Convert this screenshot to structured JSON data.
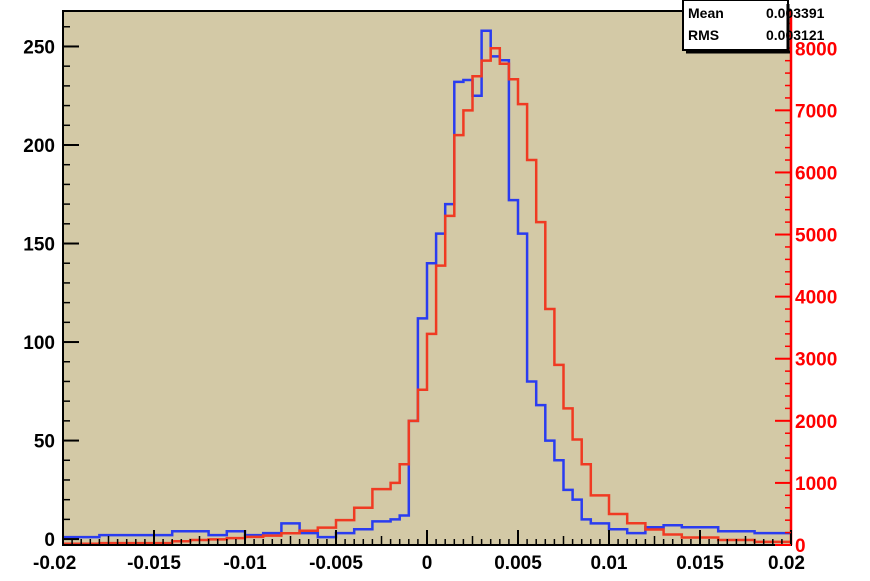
{
  "chart_data": {
    "type": "histogram",
    "xlim": [
      -0.02,
      0.02
    ],
    "x_ticks": [
      "-0.02",
      "-0.015",
      "-0.01",
      "-0.005",
      "0",
      "0.005",
      "0.01",
      "0.015",
      "0.02"
    ],
    "x_tick_values": [
      -0.02,
      -0.015,
      -0.01,
      -0.005,
      0,
      0.005,
      0.01,
      0.015,
      0.02
    ],
    "left_axis": {
      "ylim": [
        -3,
        268
      ],
      "ticks": [
        "0",
        "50",
        "100",
        "150",
        "200",
        "250"
      ],
      "tick_values": [
        0,
        50,
        100,
        150,
        200,
        250
      ],
      "color": "#000000"
    },
    "right_axis": {
      "ylim": [
        0,
        8600
      ],
      "ticks": [
        "0",
        "1000",
        "2000",
        "3000",
        "4000",
        "5000",
        "6000",
        "7000",
        "8000"
      ],
      "tick_values": [
        0,
        1000,
        2000,
        3000,
        4000,
        5000,
        6000,
        7000,
        8000
      ],
      "color": "#ff0000"
    },
    "bin_edges": [
      -0.02,
      -0.018,
      -0.014,
      -0.013,
      -0.012,
      -0.011,
      -0.01,
      -0.009,
      -0.008,
      -0.007,
      -0.006,
      -0.005,
      -0.004,
      -0.003,
      -0.002,
      -0.0015,
      -0.001,
      -0.0005,
      0,
      0.0005,
      0.001,
      0.0015,
      0.002,
      0.0025,
      0.003,
      0.0035,
      0.004,
      0.0045,
      0.005,
      0.0055,
      0.006,
      0.0065,
      0.007,
      0.0075,
      0.008,
      0.0085,
      0.009,
      0.01,
      0.011,
      0.012,
      0.013,
      0.014,
      0.016,
      0.018,
      0.02
    ],
    "series": [
      {
        "axis": "left",
        "color": "#2a3cf0",
        "values": [
          1,
          2,
          4,
          4,
          2,
          4,
          2,
          3,
          8,
          3,
          1,
          3,
          5,
          9,
          10,
          12,
          60,
          112,
          140,
          155,
          170,
          232,
          233,
          225,
          258,
          245,
          243,
          172,
          155,
          80,
          68,
          50,
          40,
          25,
          20,
          10,
          8,
          5,
          3,
          6,
          7,
          6,
          4,
          3
        ]
      },
      {
        "axis": "right",
        "color": "#f03a22",
        "values": [
          20,
          30,
          60,
          80,
          90,
          110,
          130,
          150,
          190,
          230,
          280,
          400,
          600,
          900,
          1000,
          1300,
          2000,
          2500,
          3400,
          4500,
          5300,
          6600,
          7000,
          7550,
          7800,
          8000,
          7750,
          7500,
          7100,
          6200,
          5200,
          3800,
          2900,
          2200,
          1700,
          1300,
          800,
          500,
          350,
          250,
          170,
          120,
          80,
          50
        ]
      }
    ],
    "stats": [
      {
        "label": "Mean",
        "value": "0.003391"
      },
      {
        "label": "RMS",
        "value": "0.003121"
      }
    ]
  },
  "colors": {
    "background": "#d3c9a6",
    "frame": "#000000",
    "left_axis": "#000000",
    "right_axis": "#ff0000"
  }
}
